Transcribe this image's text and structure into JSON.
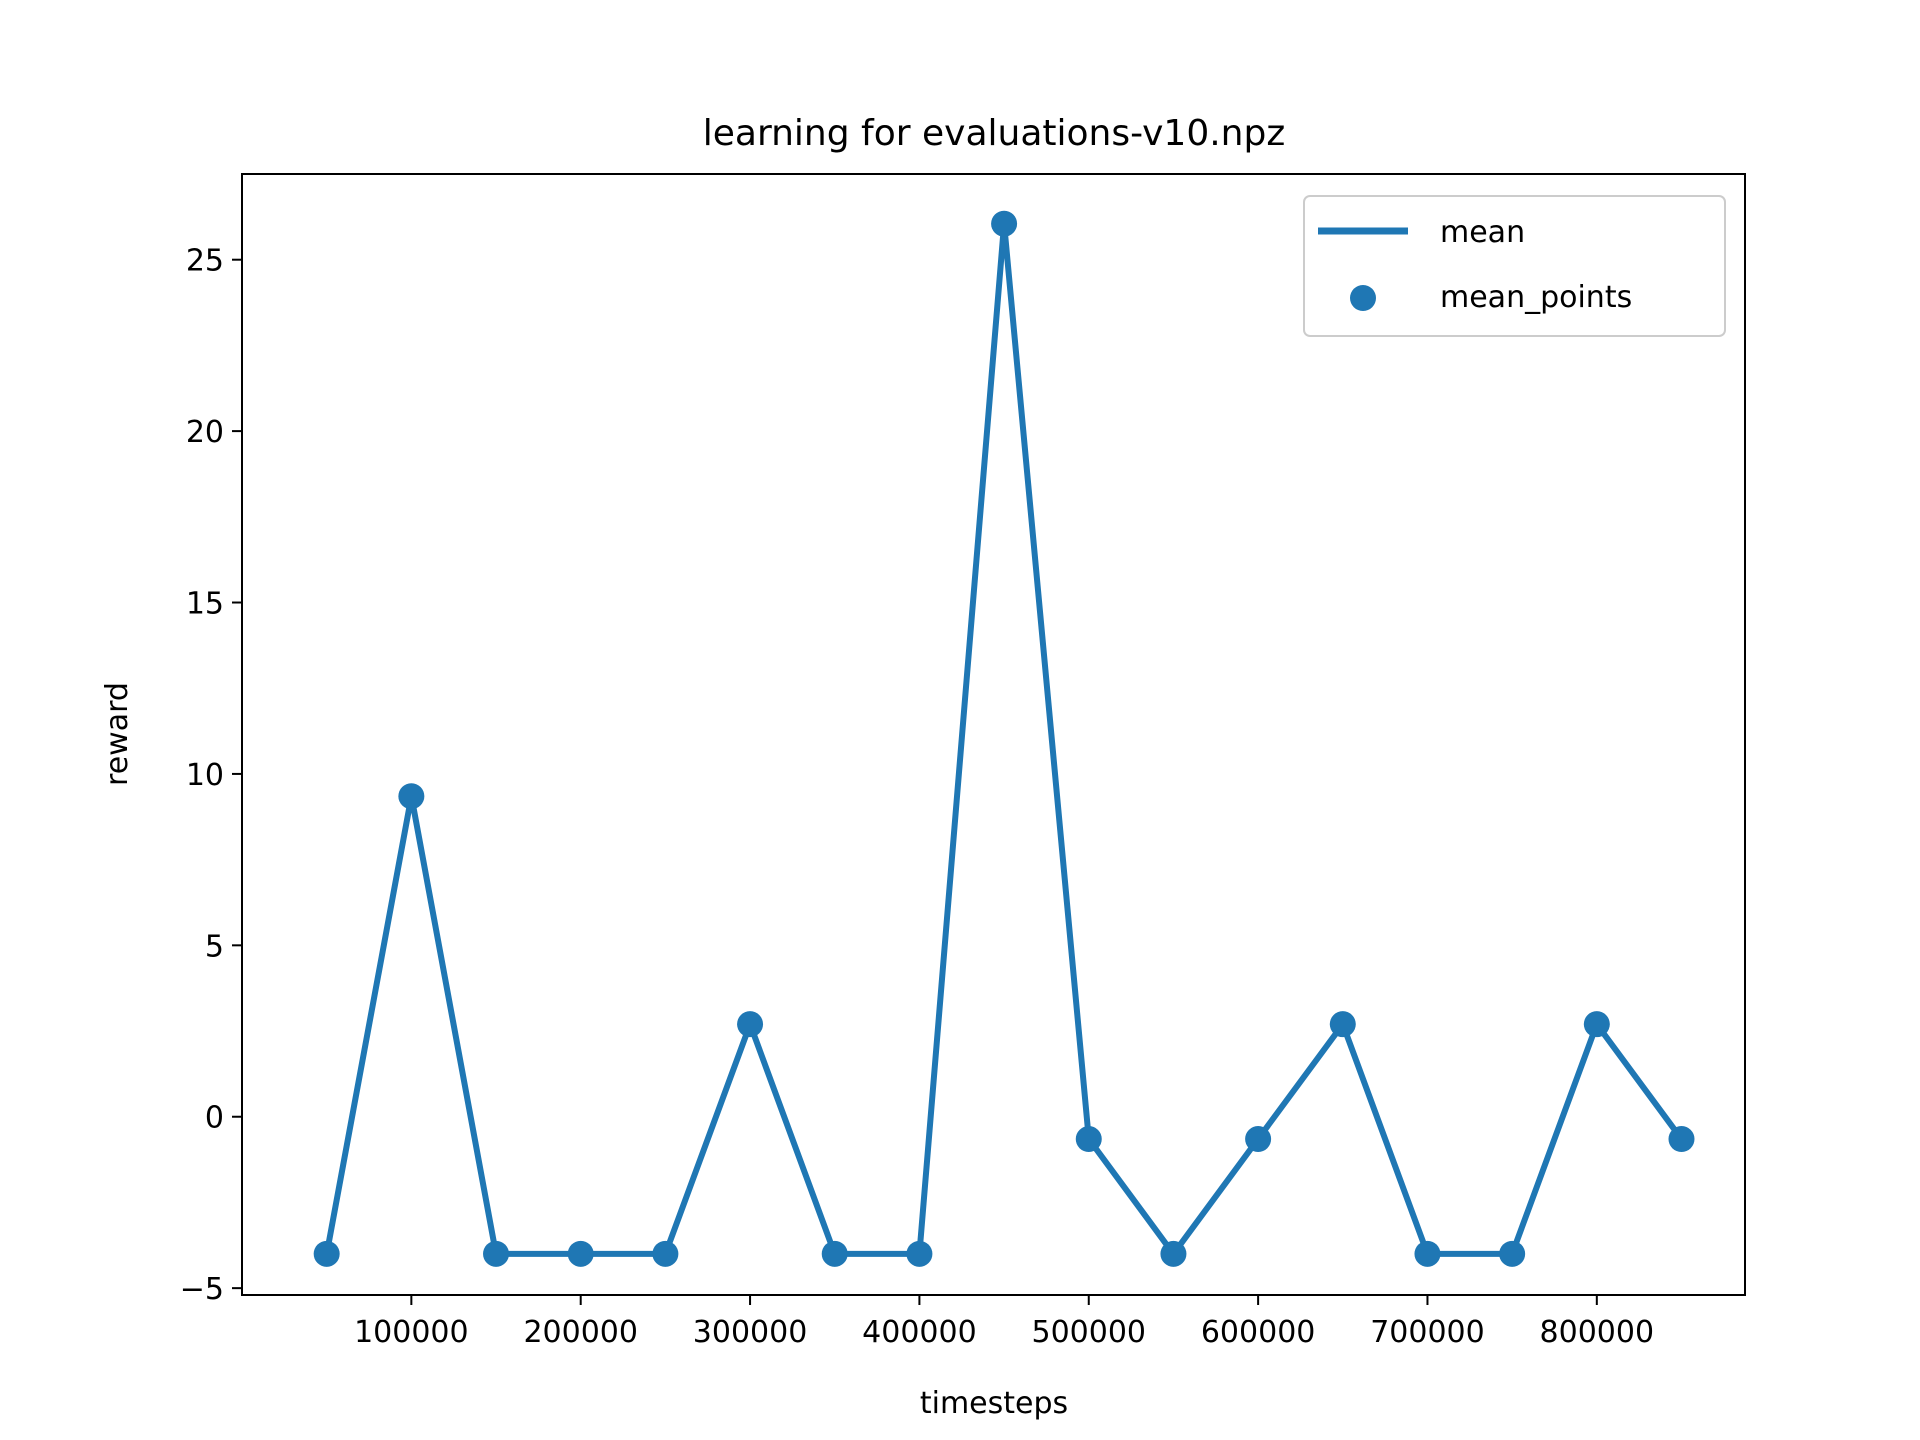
{
  "chart_data": {
    "type": "line",
    "title": "learning for evaluations-v10.npz",
    "xlabel": "timesteps",
    "ylabel": "reward",
    "xlim": [
      0,
      887500
    ],
    "ylim": [
      -5.2,
      27.5
    ],
    "xticks": [
      100000,
      200000,
      300000,
      400000,
      500000,
      600000,
      700000,
      800000
    ],
    "yticks": [
      -5,
      0,
      5,
      10,
      15,
      20,
      25
    ],
    "ytick_labels": [
      "−5",
      "0",
      "5",
      "10",
      "15",
      "20",
      "25"
    ],
    "grid": false,
    "legend_position": "upper right",
    "color": "#1f77b4",
    "series": [
      {
        "name": "mean",
        "style": "line",
        "x": [
          50000,
          100000,
          150000,
          200000,
          250000,
          300000,
          350000,
          400000,
          450000,
          500000,
          550000,
          600000,
          650000,
          700000,
          750000,
          800000,
          850000
        ],
        "y": [
          -4.0,
          9.35,
          -4.0,
          -4.0,
          -4.0,
          2.7,
          -4.0,
          -4.0,
          26.05,
          -0.65,
          -4.0,
          -0.65,
          2.7,
          -4.0,
          -4.0,
          2.7,
          -0.65
        ]
      },
      {
        "name": "mean_points",
        "style": "scatter",
        "x": [
          50000,
          100000,
          150000,
          200000,
          250000,
          300000,
          350000,
          400000,
          450000,
          500000,
          550000,
          600000,
          650000,
          700000,
          750000,
          800000,
          850000
        ],
        "y": [
          -4.0,
          9.35,
          -4.0,
          -4.0,
          -4.0,
          2.7,
          -4.0,
          -4.0,
          26.05,
          -0.65,
          -4.0,
          -0.65,
          2.7,
          -4.0,
          -4.0,
          2.7,
          -0.65
        ]
      }
    ]
  }
}
